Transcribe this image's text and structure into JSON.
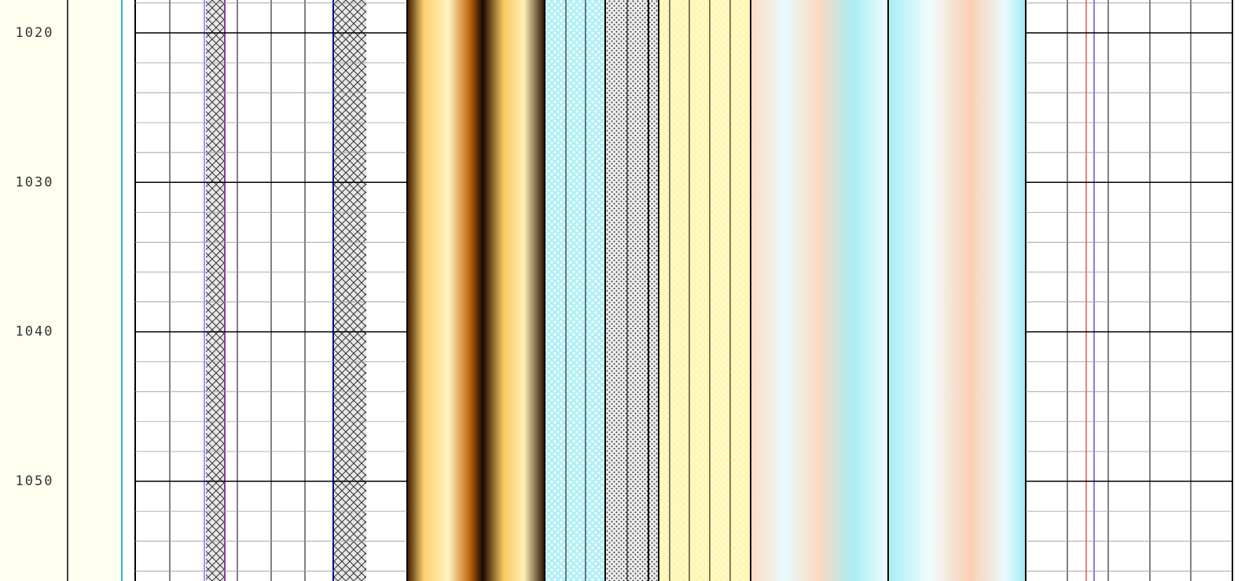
{
  "chart_data": {
    "type": "well-log",
    "ylim": [
      1017.8,
      1056.3
    ],
    "yticks": [
      1020,
      1030,
      1040,
      1050
    ],
    "grid": true,
    "inverted": true
  }
}
